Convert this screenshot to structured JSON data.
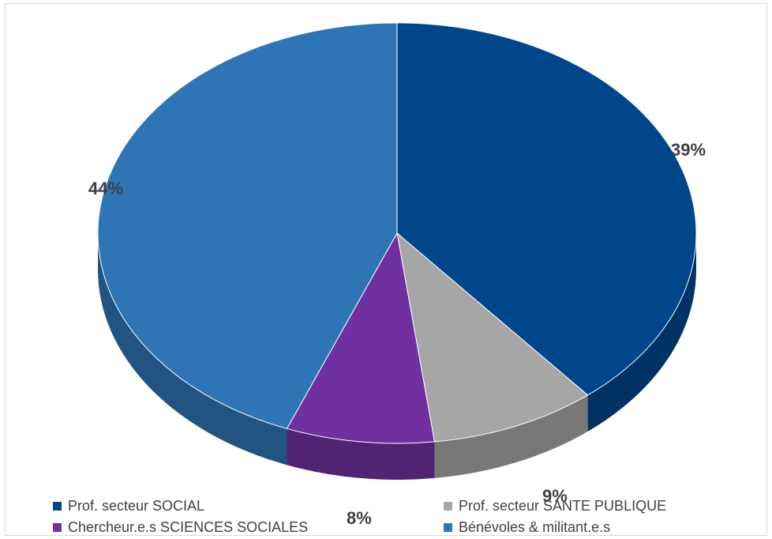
{
  "chart_data": {
    "type": "pie",
    "title": "",
    "style": "3d",
    "start_angle_deg": 0,
    "direction": "clockwise",
    "legend_position": "bottom",
    "slices": [
      {
        "label": "Prof. secteur SOCIAL",
        "value": 39,
        "display": "39%",
        "color": "#00468b"
      },
      {
        "label": "Prof. secteur SANTE PUBLIQUE",
        "value": 9,
        "display": "9%",
        "color": "#a6a6a6"
      },
      {
        "label": "Chercheur.e.s SCIENCES SOCIALES",
        "value": 8,
        "display": "8%",
        "color": "#7030a0"
      },
      {
        "label": "Bénévoles & militant.e.s",
        "value": 44,
        "display": "44%",
        "color": "#2e75b6"
      }
    ]
  }
}
